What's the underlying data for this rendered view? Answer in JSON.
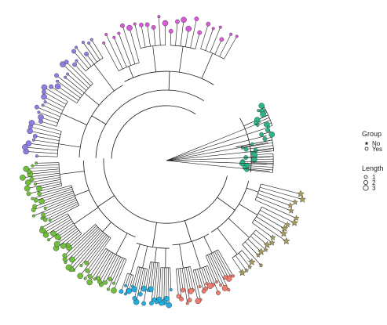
{
  "chart_data": {
    "type": "circular-phylogenetic-tree",
    "open_arc": "right side open (fan layout, ~270° sweep)",
    "colors": {
      "branch": "#1a1a1a",
      "clade_magenta": "#d65ad6",
      "clade_purple": "#8a7fe0",
      "clade_green": "#6fbf3a",
      "clade_teal": "#2ab58a",
      "clade_cyan": "#22aee0",
      "clade_salmon": "#f07a6e",
      "clade_khaki": "#a89a5a"
    },
    "clades": [
      {
        "color_key": "clade_teal",
        "tips": 26
      },
      {
        "color_key": "clade_magenta",
        "tips": 24
      },
      {
        "color_key": "clade_purple",
        "tips": 34
      },
      {
        "color_key": "clade_green",
        "tips": 60
      },
      {
        "color_key": "clade_cyan",
        "tips": 22
      },
      {
        "color_key": "clade_salmon",
        "tips": 24
      },
      {
        "color_key": "clade_khaki",
        "tips": 22
      }
    ],
    "legend": {
      "group": {
        "title": "Group",
        "items": [
          {
            "label": "No",
            "shape": "star"
          },
          {
            "label": "Yes",
            "shape": "circle"
          }
        ]
      },
      "length": {
        "title": "Length",
        "items": [
          {
            "label": "1"
          },
          {
            "label": "2"
          },
          {
            "label": "3"
          }
        ]
      }
    }
  }
}
